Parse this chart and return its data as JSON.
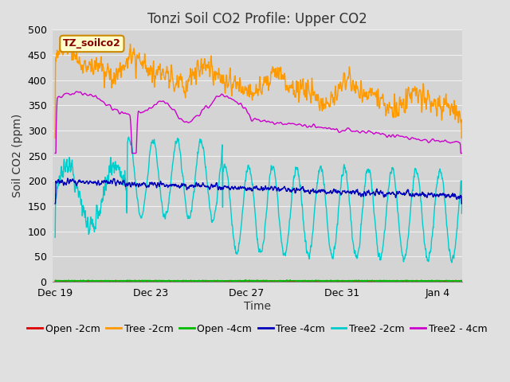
{
  "title": "Tonzi Soil CO2 Profile: Upper CO2",
  "xlabel": "Time",
  "ylabel": "Soil CO2 (ppm)",
  "ylim": [
    0,
    500
  ],
  "yticks": [
    0,
    50,
    100,
    150,
    200,
    250,
    300,
    350,
    400,
    450,
    500
  ],
  "background_color": "#e0e0e0",
  "plot_bg_color": "#d4d4d4",
  "grid_color": "#f0f0f0",
  "title_fontsize": 12,
  "axis_label_fontsize": 10,
  "tick_label_fontsize": 9,
  "legend_fontsize": 9,
  "label_box_color": "#ffffcc",
  "label_box_edge": "#cc8800",
  "label_text_color": "#880000",
  "label_text": "TZ_soilco2",
  "series": [
    {
      "name": "Open -2cm",
      "color": "#dd0000",
      "lw": 1.0
    },
    {
      "name": "Tree -2cm",
      "color": "#ff9900",
      "lw": 1.0
    },
    {
      "name": "Open -4cm",
      "color": "#00bb00",
      "lw": 1.0
    },
    {
      "name": "Tree -4cm",
      "color": "#0000bb",
      "lw": 1.0
    },
    {
      "name": "Tree2 -2cm",
      "color": "#00cccc",
      "lw": 1.0
    },
    {
      "name": "Tree2 - 4cm",
      "color": "#cc00cc",
      "lw": 1.0
    }
  ],
  "xtick_labels": [
    "Dec 19",
    "Dec 23",
    "Dec 27",
    "Dec 31",
    "Jan 4"
  ],
  "xtick_positions": [
    0,
    4,
    8,
    12,
    16
  ]
}
